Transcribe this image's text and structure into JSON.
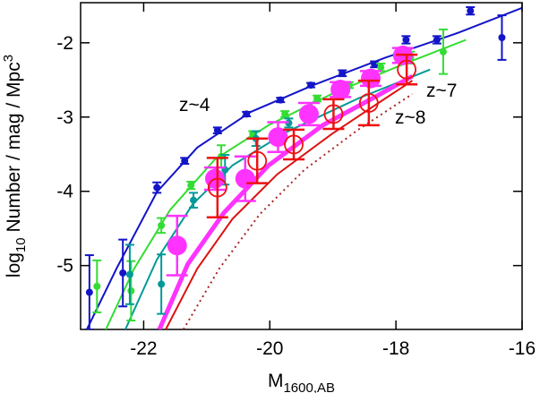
{
  "chart_data": {
    "type": "scatter",
    "xlabel_parts": [
      "M",
      "1600,AB"
    ],
    "ylabel_parts": [
      "log",
      "10",
      " Number  /  mag  /  Mpc",
      "3"
    ],
    "xlim": [
      -23,
      -16
    ],
    "ylim": [
      -5.86,
      -1.46
    ],
    "xticks": [
      -22,
      -20,
      -18,
      -16
    ],
    "yticks": [
      -2,
      -3,
      -4,
      -5
    ],
    "series": [
      {
        "name": "z~4",
        "color": "#1414c8",
        "marker": "dot",
        "x": [
          -22.86,
          -22.33,
          -21.79,
          -21.35,
          -20.83,
          -20.37,
          -19.83,
          -19.35,
          -18.85,
          -18.34,
          -17.84,
          -17.35,
          -16.82,
          -16.32
        ],
        "values": [
          -5.36,
          -5.1,
          -3.95,
          -3.59,
          -3.18,
          -2.96,
          -2.77,
          -2.57,
          -2.41,
          -2.29,
          -1.96,
          -1.96,
          -1.57,
          -1.93
        ],
        "errors": [
          0.5,
          0.45,
          0.07,
          0.04,
          0.04,
          0.03,
          0.03,
          0.03,
          0.04,
          0.04,
          0.05,
          0.05,
          0.05,
          0.3
        ]
      },
      {
        "color": "#33dd33",
        "marker": "dot",
        "x": [
          -22.74,
          -22.2,
          -21.72,
          -21.25,
          -20.77,
          -20.27,
          -19.76,
          -19.25,
          -18.74,
          -18.24,
          -17.77,
          -17.25
        ],
        "values": [
          -5.28,
          -5.34,
          -4.46,
          -3.92,
          -3.53,
          -3.23,
          -2.96,
          -2.75,
          -2.57,
          -2.33,
          -2.2,
          -2.12
        ],
        "errors": [
          0.35,
          0.4,
          0.1,
          0.05,
          0.15,
          0.04,
          0.04,
          0.04,
          0.04,
          0.05,
          0.08,
          0.3
        ]
      },
      {
        "color": "#009999",
        "marker": "dot",
        "x": [
          -22.22,
          -21.72,
          -21.21,
          -20.71,
          -20.22,
          -19.7
        ],
        "values": [
          -5.12,
          -5.25,
          -4.12,
          -3.71,
          -3.29,
          -3.08
        ],
        "errors": [
          0.4,
          0.4,
          0.1,
          0.2,
          0.1,
          0.06
        ]
      },
      {
        "name": "z~7",
        "color": "#ff33ff",
        "marker": "big",
        "x": [
          -21.47,
          -20.87,
          -20.39,
          -19.87,
          -19.38,
          -18.88,
          -18.4,
          -17.89
        ],
        "values": [
          -4.73,
          -3.83,
          -3.83,
          -3.27,
          -2.96,
          -2.63,
          -2.48,
          -2.17
        ],
        "errors": [
          0.4,
          0.15,
          0.3,
          0.2,
          0.15,
          0.1,
          0.1,
          0.1
        ]
      },
      {
        "name": "z~8",
        "color": "#ee1111",
        "marker": "open",
        "x": [
          -20.83,
          -20.2,
          -19.62,
          -18.99,
          -18.43,
          -17.83
        ],
        "values": [
          -3.95,
          -3.59,
          -3.37,
          -2.96,
          -2.81,
          -2.36
        ],
        "errors": [
          0.4,
          0.3,
          0.2,
          0.2,
          0.3,
          0.2
        ]
      }
    ],
    "curves": [
      {
        "color": "#1414c8",
        "style": "solid",
        "x": [
          -22.9,
          -22.43,
          -21.79,
          -21.15,
          -20.3,
          -19.31,
          -18.17,
          -17.03,
          -16.0
        ],
        "values": [
          -5.86,
          -5.04,
          -4.01,
          -3.41,
          -2.93,
          -2.57,
          -2.2,
          -1.87,
          -1.53
        ]
      },
      {
        "color": "#33dd33",
        "style": "solid",
        "x": [
          -22.6,
          -22.15,
          -21.58,
          -20.87,
          -20.02,
          -19.02,
          -17.89,
          -16.89
        ],
        "values": [
          -5.86,
          -5.04,
          -4.25,
          -3.57,
          -3.11,
          -2.69,
          -2.29,
          -1.96
        ]
      },
      {
        "color": "#009999",
        "style": "solid",
        "x": [
          -22.29,
          -21.79,
          -21.22,
          -20.59,
          -19.73,
          -18.6,
          -17.46
        ],
        "values": [
          -5.86,
          -4.92,
          -4.17,
          -3.65,
          -3.2,
          -2.75,
          -2.36
        ]
      },
      {
        "color": "#ff33ff",
        "style": "thick",
        "x": [
          -21.75,
          -21.3,
          -20.73,
          -20.02,
          -19.16,
          -18.31,
          -17.74
        ],
        "values": [
          -5.86,
          -4.98,
          -4.29,
          -3.65,
          -3.11,
          -2.72,
          -2.45
        ]
      },
      {
        "color": "#dd1111",
        "style": "solid",
        "x": [
          -21.65,
          -21.15,
          -20.59,
          -19.88,
          -19.02,
          -18.17,
          -17.74
        ],
        "values": [
          -5.86,
          -5.04,
          -4.37,
          -3.77,
          -3.23,
          -2.75,
          -2.51
        ]
      },
      {
        "color": "#aa2222",
        "style": "dotted",
        "x": [
          -21.37,
          -20.8,
          -20.16,
          -19.45,
          -18.6,
          -17.74
        ],
        "values": [
          -5.86,
          -5.04,
          -4.31,
          -3.71,
          -3.17,
          -2.69
        ]
      }
    ]
  }
}
